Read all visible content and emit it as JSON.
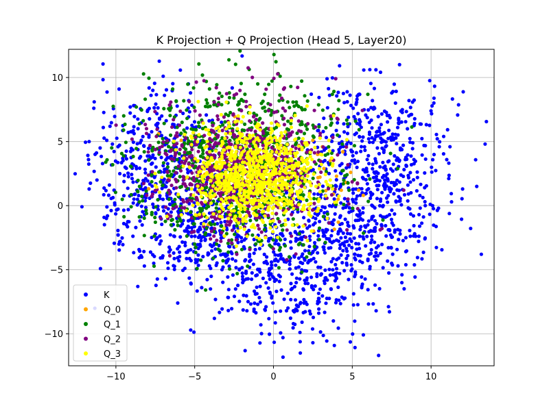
{
  "chart_data": {
    "type": "scatter",
    "title": "K Projection + Q Projection (Head 5, Layer20)",
    "xlabel": "",
    "ylabel": "",
    "xlim": [
      -13,
      14
    ],
    "ylim": [
      -12.5,
      12.2
    ],
    "xticks": [
      -10,
      -5,
      0,
      5,
      10
    ],
    "xtick_labels": [
      "−10",
      "−5",
      "0",
      "5",
      "10"
    ],
    "yticks": [
      -10,
      -5,
      0,
      5,
      10
    ],
    "ytick_labels": [
      "−10",
      "−5",
      "0",
      "5",
      "10"
    ],
    "grid": true,
    "legend_position": "lower-left",
    "series": [
      {
        "name": "K",
        "color": "#0000ff",
        "clusters": [
          {
            "cx": -7.2,
            "cy": 2.2,
            "sx": 2.1,
            "sy": 3.4,
            "n": 450
          },
          {
            "cx": 6.6,
            "cy": 3.8,
            "sx": 2.2,
            "sy": 3.0,
            "n": 450
          },
          {
            "cx": 1.3,
            "cy": -4.8,
            "sx": 2.5,
            "sy": 2.7,
            "n": 400
          },
          {
            "cx": 5.2,
            "cy": -1.8,
            "sx": 2.4,
            "sy": 2.2,
            "n": 250
          },
          {
            "cx": -4.5,
            "cy": -2.5,
            "sx": 2.0,
            "sy": 1.8,
            "n": 200
          }
        ],
        "points": [
          [
            -11.7,
            1.3
          ],
          [
            -11.2,
            2.0
          ],
          [
            -11.0,
            4.5
          ],
          [
            -10.6,
            -1.0
          ],
          [
            -10.8,
            6.1
          ],
          [
            -11.4,
            7.6
          ],
          [
            -9.8,
            9.1
          ],
          [
            -7.0,
            10.1
          ],
          [
            -5.4,
            9.5
          ],
          [
            -6.0,
            -4.3
          ],
          [
            -7.6,
            -4.5
          ],
          [
            -4.0,
            -6.5
          ],
          [
            -1.0,
            -7.7
          ],
          [
            0.6,
            -10.3
          ],
          [
            1.7,
            -11.5
          ],
          [
            2.5,
            -10.7
          ],
          [
            3.8,
            -9.0
          ],
          [
            5.6,
            -6.4
          ],
          [
            7.5,
            -4.5
          ],
          [
            8.4,
            -2.5
          ],
          [
            10.1,
            0.0
          ],
          [
            11.3,
            0.3
          ],
          [
            12.0,
            1.3
          ],
          [
            12.9,
            1.5
          ],
          [
            11.2,
            4.6
          ],
          [
            10.8,
            5.4
          ],
          [
            10.0,
            7.4
          ],
          [
            8.6,
            8.2
          ],
          [
            8.0,
            11.0
          ],
          [
            6.5,
            10.6
          ],
          [
            3.4,
            9.9
          ],
          [
            2.4,
            8.7
          ],
          [
            8.5,
            6.0
          ],
          [
            -9.5,
            -1.4
          ],
          [
            -8.8,
            7.8
          ],
          [
            -3.2,
            -4.8
          ]
        ]
      },
      {
        "name": "Q_0",
        "color": "#ffa500",
        "clusters": [
          {
            "cx": -0.8,
            "cy": 2.4,
            "sx": 2.4,
            "sy": 1.8,
            "n": 60
          }
        ],
        "points": [
          [
            2.5,
            5.1
          ],
          [
            3.1,
            4.6
          ],
          [
            3.6,
            3.5
          ],
          [
            4.0,
            2.3
          ],
          [
            4.3,
            1.2
          ],
          [
            4.1,
            0.5
          ],
          [
            4.4,
            4.2
          ],
          [
            3.8,
            0.9
          ],
          [
            4.6,
            1.8
          ],
          [
            5.4,
            1.2
          ],
          [
            5.7,
            0.8
          ],
          [
            3.2,
            2.9
          ],
          [
            2.8,
            4.0
          ],
          [
            4.9,
            2.6
          ],
          [
            3.9,
            0.2
          ]
        ]
      },
      {
        "name": "Q_1",
        "color": "#008000",
        "clusters": [
          {
            "cx": -2.2,
            "cy": 3.0,
            "sx": 3.3,
            "sy": 3.1,
            "n": 900
          }
        ],
        "points": [
          [
            -8.2,
            4.2
          ],
          [
            -8.5,
            1.5
          ],
          [
            -6.5,
            -1.5
          ],
          [
            -5.0,
            -3.0
          ],
          [
            -3.2,
            -4.3
          ],
          [
            -1.5,
            -3.3
          ],
          [
            1.0,
            -4.0
          ],
          [
            2.6,
            -3.2
          ],
          [
            0.3,
            10.3
          ],
          [
            -1.0,
            9.5
          ],
          [
            -2.8,
            8.8
          ],
          [
            1.1,
            9.3
          ],
          [
            2.0,
            7.5
          ],
          [
            -5.8,
            6.5
          ],
          [
            -4.2,
            8.0
          ]
        ]
      },
      {
        "name": "Q_2",
        "color": "#800080",
        "clusters": [
          {
            "cx": -2.0,
            "cy": 2.8,
            "sx": 2.6,
            "sy": 2.5,
            "n": 800
          }
        ],
        "points": [
          [
            -6.7,
            2.0
          ],
          [
            -6.0,
            -0.8
          ],
          [
            -4.0,
            -2.6
          ],
          [
            -0.5,
            -2.4
          ],
          [
            2.0,
            -1.5
          ],
          [
            0.6,
            7.6
          ],
          [
            -1.5,
            7.8
          ],
          [
            -4.5,
            6.5
          ],
          [
            1.6,
            6.6
          ]
        ]
      },
      {
        "name": "Q_3",
        "color": "#ffff00",
        "clusters": [
          {
            "cx": -1.1,
            "cy": 2.3,
            "sx": 2.05,
            "sy": 1.95,
            "n": 900
          }
        ],
        "points": [
          [
            -5.1,
            5.7
          ],
          [
            -1.5,
            7.7
          ],
          [
            3.0,
            4.0
          ],
          [
            3.6,
            2.0
          ],
          [
            -0.9,
            -2.6
          ],
          [
            1.5,
            -1.5
          ],
          [
            -4.6,
            1.0
          ],
          [
            2.9,
            0.5
          ]
        ]
      }
    ]
  }
}
